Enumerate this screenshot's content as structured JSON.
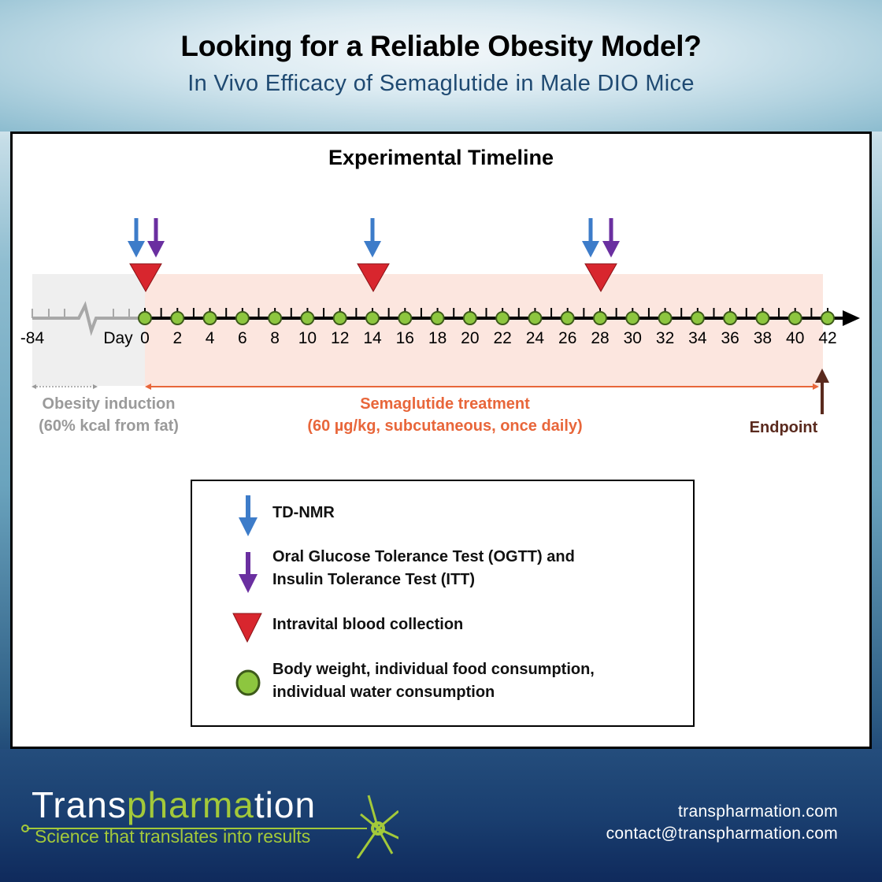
{
  "header": {
    "title": "Looking for a Reliable Obesity Model?",
    "subtitle": "In Vivo Efficacy of Semaglutide in Male DIO Mice"
  },
  "diagram": {
    "title": "Experimental Timeline",
    "axis": {
      "start_label": "-84",
      "day_label": "Day",
      "ticks": [
        "0",
        "2",
        "4",
        "6",
        "8",
        "10",
        "12",
        "14",
        "16",
        "18",
        "20",
        "22",
        "24",
        "26",
        "28",
        "30",
        "32",
        "34",
        "36",
        "38",
        "40",
        "42"
      ]
    },
    "phases": [
      {
        "name": "Obesity induction",
        "detail": "(60% kcal from fat)",
        "color": "#9a9a9a"
      },
      {
        "name": "Semaglutide treatment",
        "detail": "(60 µg/kg, subcutaneous, once daily)",
        "color": "#e8663a"
      }
    ],
    "endpoint_label": "Endpoint",
    "events": [
      {
        "day": 0,
        "markers": [
          "TD-NMR",
          "OGTT/ITT",
          "Intravital blood collection"
        ]
      },
      {
        "day": 14,
        "markers": [
          "TD-NMR",
          "Intravital blood collection"
        ]
      },
      {
        "day": 28,
        "markers": [
          "TD-NMR",
          "OGTT/ITT",
          "Intravital blood collection"
        ]
      }
    ],
    "colors": {
      "tdnmr": "#3d7cc9",
      "ogtt": "#6a2fa0",
      "blood": "#d8262e",
      "measure": "#8dc63f",
      "endpoint": "#5a2a1e",
      "treatment_bg": "#fce6df",
      "induction_bg": "#efefef"
    }
  },
  "legend": {
    "items": [
      {
        "icon": "blue-down-arrow",
        "label_lines": [
          "TD-NMR"
        ]
      },
      {
        "icon": "purple-down-arrow",
        "label_lines": [
          "Oral Glucose Tolerance Test (OGTT) and",
          "Insulin Tolerance Test (ITT)"
        ]
      },
      {
        "icon": "red-triangle",
        "label_lines": [
          "Intravital blood collection"
        ]
      },
      {
        "icon": "green-circle",
        "label_lines": [
          "Body weight, individual food consumption,",
          "individual water consumption"
        ]
      }
    ]
  },
  "footer": {
    "brand_prefix": "Trans",
    "brand_mid": "pharma",
    "brand_mid2": "tion",
    "tagline": "Science that translates into results",
    "website": "transpharmation.com",
    "email": "contact@transpharmation.com"
  }
}
